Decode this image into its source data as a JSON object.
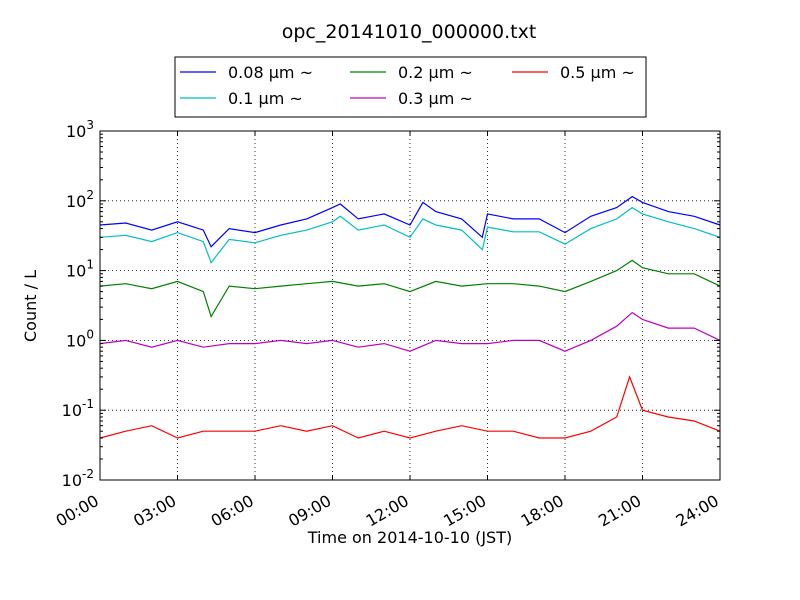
{
  "chart_data": {
    "type": "line",
    "title": "opc_20141010_000000.txt",
    "xlabel": "Time on 2014-10-10 (JST)",
    "ylabel": "Count / L",
    "x_range_hours": [
      0,
      24
    ],
    "x_ticks": [
      "00:00",
      "03:00",
      "06:00",
      "09:00",
      "12:00",
      "15:00",
      "18:00",
      "21:00",
      "24:00"
    ],
    "y_scale": "log",
    "ylim": [
      0.01,
      1000
    ],
    "y_ticks": [
      {
        "base": "10",
        "exp": "-2"
      },
      {
        "base": "10",
        "exp": "-1"
      },
      {
        "base": "10",
        "exp": "0"
      },
      {
        "base": "10",
        "exp": "1"
      },
      {
        "base": "10",
        "exp": "2"
      },
      {
        "base": "10",
        "exp": "3"
      }
    ],
    "grid": true,
    "legend_position": "top, above plot",
    "series": [
      {
        "name": "0.08 μm ~",
        "color": "#0000ff",
        "hours": [
          0,
          1,
          2,
          3,
          4,
          4.3,
          5,
          6,
          7,
          8,
          9,
          9.3,
          10,
          11,
          12,
          12.5,
          13,
          14,
          14.8,
          15,
          16,
          17,
          18,
          19,
          20,
          20.6,
          21,
          22,
          23,
          24
        ],
        "values": [
          45,
          48,
          38,
          50,
          38,
          22,
          40,
          35,
          45,
          55,
          80,
          90,
          55,
          65,
          45,
          95,
          70,
          55,
          30,
          65,
          55,
          55,
          35,
          60,
          80,
          115,
          95,
          70,
          60,
          45
        ]
      },
      {
        "name": "0.1 μm ~",
        "color": "#00bfbf",
        "hours": [
          0,
          1,
          2,
          3,
          4,
          4.3,
          5,
          6,
          7,
          8,
          9,
          9.3,
          10,
          11,
          12,
          12.5,
          13,
          14,
          14.8,
          15,
          16,
          17,
          18,
          19,
          20,
          20.6,
          21,
          22,
          23,
          24
        ],
        "values": [
          30,
          32,
          26,
          35,
          26,
          13,
          28,
          25,
          32,
          38,
          50,
          60,
          38,
          45,
          30,
          55,
          45,
          38,
          20,
          42,
          36,
          36,
          24,
          40,
          55,
          80,
          65,
          50,
          40,
          30
        ]
      },
      {
        "name": "0.2 μm ~",
        "color": "#008000",
        "hours": [
          0,
          1,
          2,
          3,
          4,
          4.3,
          5,
          6,
          7,
          8,
          9,
          10,
          11,
          12,
          13,
          14,
          15,
          16,
          17,
          18,
          19,
          20,
          20.6,
          21,
          22,
          23,
          24
        ],
        "values": [
          6,
          6.5,
          5.5,
          7,
          5,
          2.2,
          6,
          5.5,
          6,
          6.5,
          7,
          6,
          6.5,
          5,
          7,
          6,
          6.5,
          6.5,
          6,
          5,
          7,
          10,
          14,
          11,
          9,
          9,
          6
        ]
      },
      {
        "name": "0.3 μm ~",
        "color": "#bf00bf",
        "hours": [
          0,
          1,
          2,
          3,
          4,
          5,
          6,
          7,
          8,
          9,
          10,
          11,
          12,
          13,
          14,
          15,
          16,
          17,
          18,
          19,
          20,
          20.6,
          21,
          22,
          23,
          24
        ],
        "values": [
          0.9,
          1.0,
          0.8,
          1.0,
          0.8,
          0.9,
          0.9,
          1.0,
          0.9,
          1.0,
          0.8,
          0.9,
          0.7,
          1.0,
          0.9,
          0.9,
          1.0,
          1.0,
          0.7,
          1.0,
          1.6,
          2.5,
          2.0,
          1.5,
          1.5,
          1.0
        ]
      },
      {
        "name": "0.5 μm ~",
        "color": "#ff0000",
        "hours": [
          0,
          1,
          2,
          3,
          4,
          5,
          6,
          7,
          8,
          9,
          10,
          11,
          12,
          13,
          14,
          15,
          16,
          17,
          18,
          19,
          20,
          20.5,
          21,
          22,
          23,
          24
        ],
        "values": [
          0.04,
          0.05,
          0.06,
          0.04,
          0.05,
          0.05,
          0.05,
          0.06,
          0.05,
          0.06,
          0.04,
          0.05,
          0.04,
          0.05,
          0.06,
          0.05,
          0.05,
          0.04,
          0.04,
          0.05,
          0.08,
          0.3,
          0.1,
          0.08,
          0.07,
          0.05
        ]
      }
    ]
  }
}
